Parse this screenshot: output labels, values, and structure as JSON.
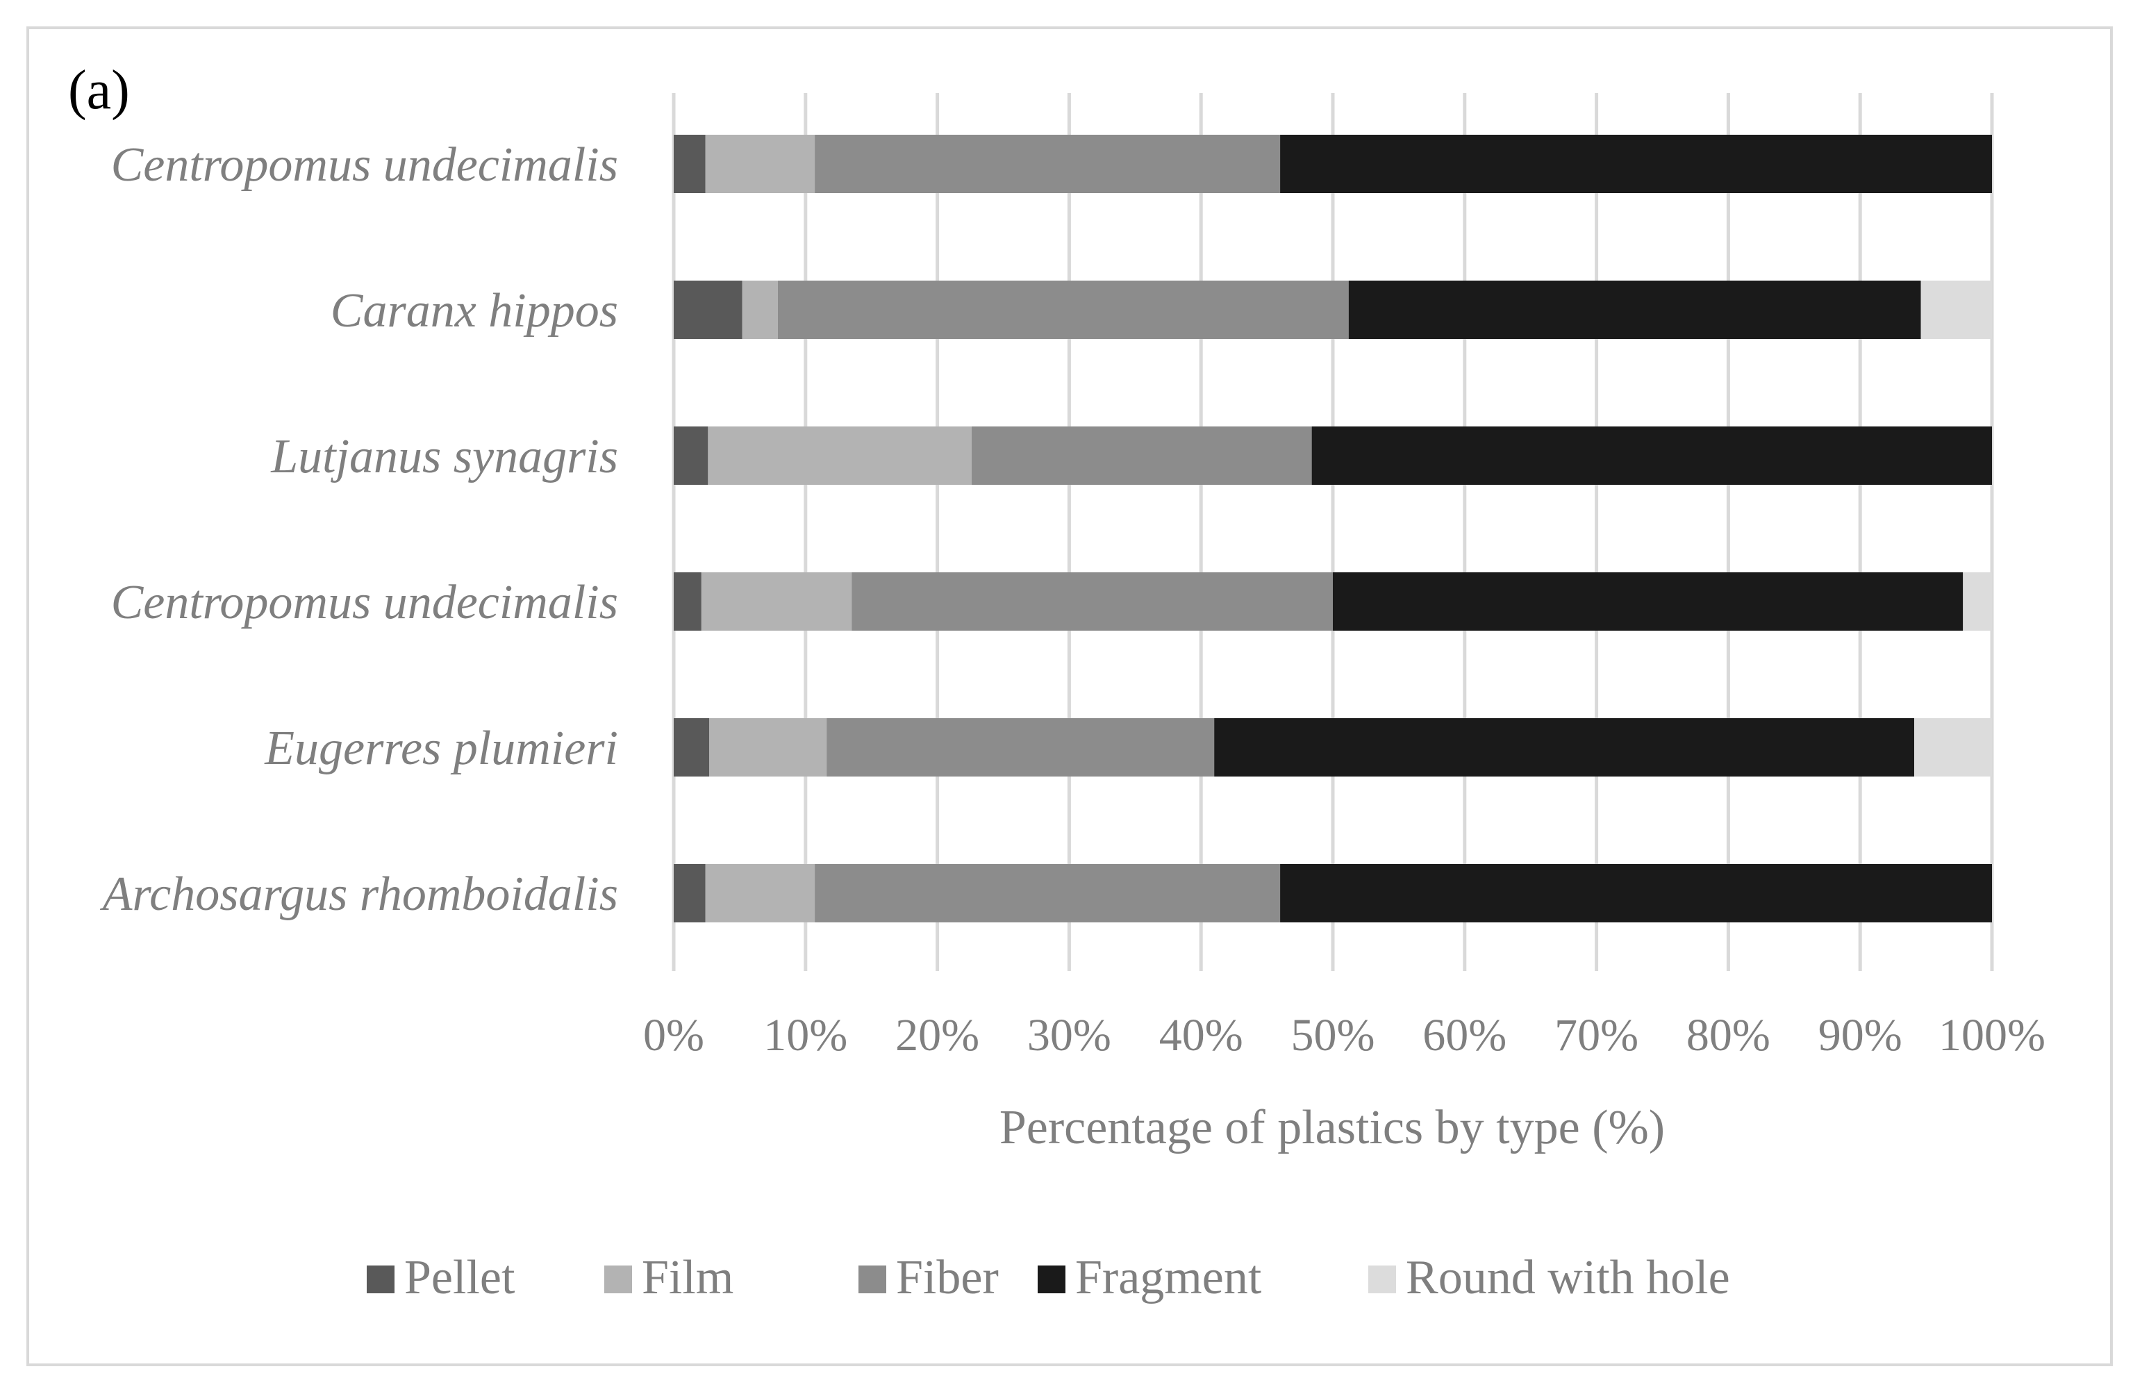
{
  "panel_label": "(a)",
  "chart_data": {
    "type": "bar",
    "orientation": "horizontal",
    "stacked": "percent",
    "categories": [
      "Centropomus undecimalis",
      "Caranx hippos",
      "Lutjanus synagris",
      "Centropomus undecimalis",
      "Eugerres plumieri",
      "Archosargus rhomboidalis"
    ],
    "series": [
      {
        "name": "Pellet",
        "color": "#595959",
        "values": [
          2.4,
          5.2,
          2.6,
          2.1,
          2.7,
          2.4
        ]
      },
      {
        "name": "Film",
        "color": "#b3b3b3",
        "values": [
          8.3,
          2.7,
          20.0,
          11.4,
          8.9,
          8.3
        ]
      },
      {
        "name": "Fiber",
        "color": "#8c8c8c",
        "values": [
          35.3,
          43.3,
          25.8,
          36.5,
          29.4,
          35.3
        ]
      },
      {
        "name": "Fragment",
        "color": "#1a1a1a",
        "values": [
          54.0,
          43.4,
          51.6,
          47.8,
          53.1,
          54.0
        ]
      },
      {
        "name": "Round with hole",
        "color": "#dcdcdc",
        "values": [
          0.0,
          5.4,
          0.0,
          2.2,
          5.9,
          0.0
        ]
      }
    ],
    "xlim": [
      0,
      100
    ],
    "xticks": [
      "0%",
      "10%",
      "20%",
      "30%",
      "40%",
      "50%",
      "60%",
      "70%",
      "80%",
      "90%",
      "100%"
    ],
    "xlabel": "Percentage of plastics by type (%)",
    "ylabel": "",
    "grid": "vertical",
    "legend_position": "bottom"
  }
}
